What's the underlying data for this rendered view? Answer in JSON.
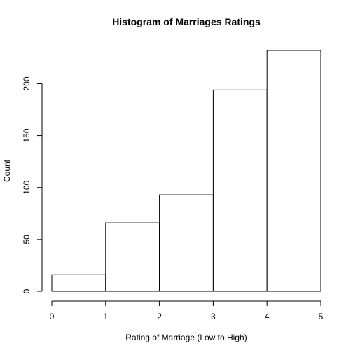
{
  "chart_data": {
    "type": "bar",
    "title": "Histogram of Marriages Ratings",
    "xlabel": "Rating of Marriage (Low to High)",
    "ylabel": "Count",
    "bins": [
      [
        0,
        1
      ],
      [
        1,
        2
      ],
      [
        2,
        3
      ],
      [
        3,
        4
      ],
      [
        4,
        5
      ]
    ],
    "values": [
      16,
      66,
      93,
      194,
      232
    ],
    "xlim": [
      0,
      5
    ],
    "ylim": [
      0,
      232
    ],
    "x_ticks": [
      0,
      1,
      2,
      3,
      4,
      5
    ],
    "y_ticks": [
      0,
      50,
      100,
      150,
      200
    ],
    "grid": false,
    "bar_fill": "#ffffff",
    "bar_stroke": "#000000"
  }
}
